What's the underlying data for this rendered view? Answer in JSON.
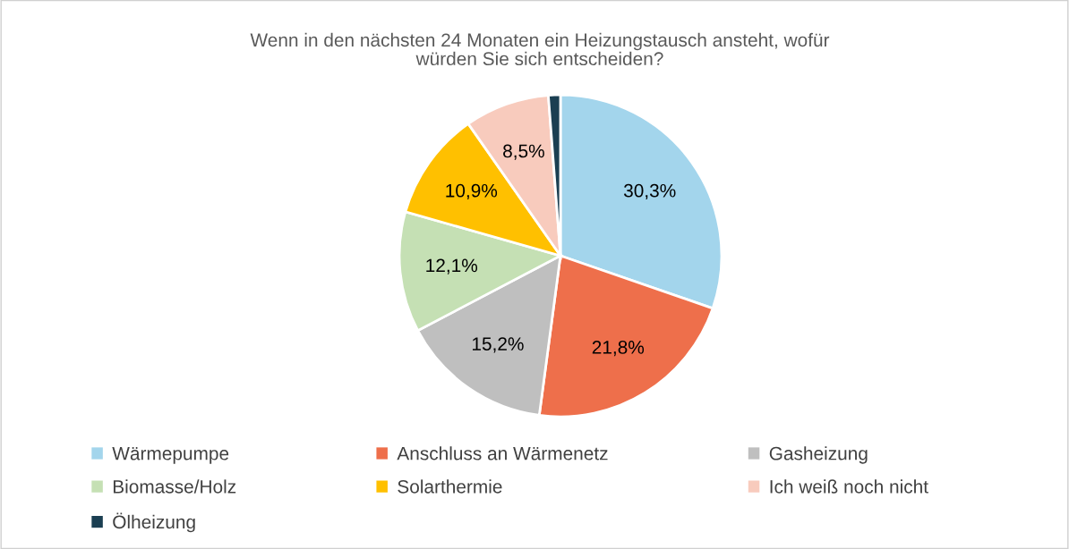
{
  "chart_data": {
    "type": "pie",
    "title": "Wenn in den nächsten 24 Monaten ein Heizungstausch ansteht, wofür\nwürden Sie sich entscheiden?",
    "categories": [
      "Wärmepumpe",
      "Anschluss an Wärmenetz",
      "Gasheizung",
      "Biomasse/Holz",
      "Solarthermie",
      "Ich weiß noch nicht",
      "Ölheizung"
    ],
    "values": [
      30.3,
      21.8,
      15.2,
      12.1,
      10.9,
      8.5,
      1.2
    ],
    "value_labels": [
      "30,3%",
      "21,8%",
      "15,2%",
      "12,1%",
      "10,9%",
      "8,5%",
      null
    ],
    "colors": [
      "#a3d5ec",
      "#ee6f4b",
      "#bfbfbf",
      "#c5e0b4",
      "#ffc000",
      "#f8cbbd",
      "#1b3f52"
    ],
    "legend": "bottom"
  }
}
